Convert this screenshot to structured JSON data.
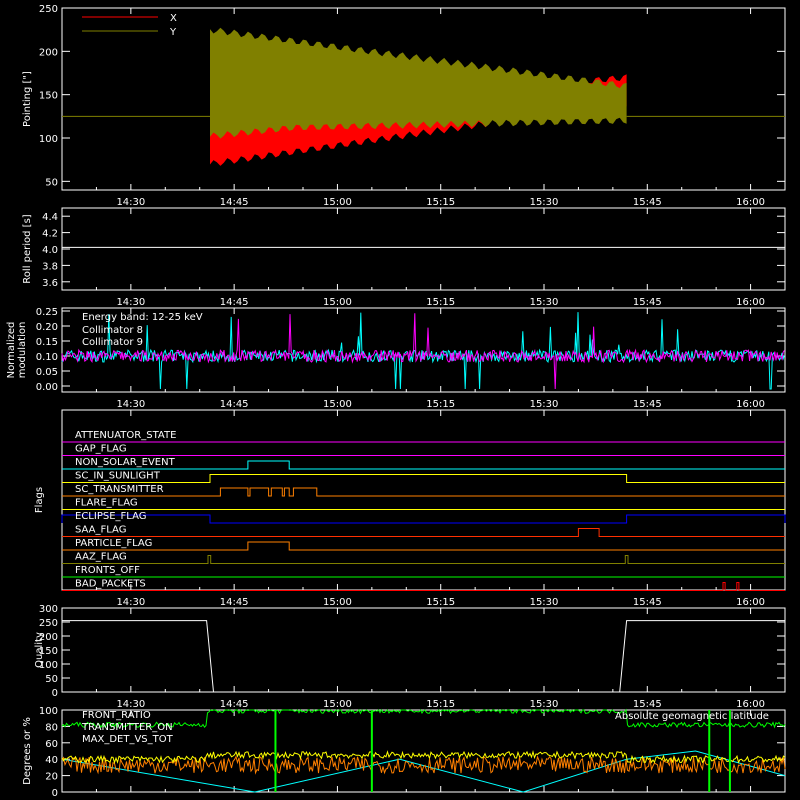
{
  "x_ticks": [
    "14:30",
    "14:45",
    "15:00",
    "15:15",
    "15:30",
    "15:45",
    "16:00"
  ],
  "panels": {
    "pointing": {
      "ylabel": "Pointing [\"]",
      "yticks": [
        "250",
        "200",
        "150",
        "100",
        "50"
      ],
      "ylim": [
        40,
        250
      ],
      "legend": [
        {
          "name": "X",
          "color": "#ff0000"
        },
        {
          "name": "Y",
          "color": "#808000"
        }
      ]
    },
    "roll": {
      "ylabel": "Roll period [s]",
      "yticks": [
        "4.4",
        "4.2",
        "4.0",
        "3.8",
        "3.6"
      ],
      "ylim": [
        3.5,
        4.5
      ],
      "value": 4.02
    },
    "modulation": {
      "ylabel_lines": [
        "Normalized",
        "modulation"
      ],
      "yticks": [
        "0.25",
        "0.20",
        "0.15",
        "0.10",
        "0.05",
        "0.00"
      ],
      "ylim": [
        -0.02,
        0.26
      ],
      "annotation": "Energy band: 12-25 keV",
      "legend": [
        {
          "name": "Collimator 8",
          "color": "#00ffff"
        },
        {
          "name": "Collimator 9",
          "color": "#ff00ff"
        }
      ]
    },
    "flags": {
      "ylabel": "Flags",
      "rows": [
        {
          "name": "ATTENUATOR_STATE",
          "color": "#ff00ff"
        },
        {
          "name": "GAP_FLAG",
          "color": "#ff00ff"
        },
        {
          "name": "NON_SOLAR_EVENT",
          "color": "#00ffff"
        },
        {
          "name": "SC_IN_SUNLIGHT",
          "color": "#ffff00"
        },
        {
          "name": "SC_TRANSMITTER",
          "color": "#ff8000"
        },
        {
          "name": "FLARE_FLAG",
          "color": "#ffff00"
        },
        {
          "name": "ECLIPSE_FLAG",
          "color": "#0000ff"
        },
        {
          "name": "SAA_FLAG",
          "color": "#ff3000"
        },
        {
          "name": "PARTICLE_FLAG",
          "color": "#ff8000"
        },
        {
          "name": "AAZ_FLAG",
          "color": "#808000"
        },
        {
          "name": "FRONTS_OFF",
          "color": "#00ff00"
        },
        {
          "name": "BAD_PACKETS",
          "color": "#ff0000"
        }
      ]
    },
    "quality": {
      "ylabel": "Quality",
      "yticks": [
        "300",
        "250",
        "200",
        "150",
        "100",
        "50",
        "0"
      ],
      "ylim": [
        0,
        300
      ]
    },
    "geo": {
      "ylabel": "Degrees or %",
      "yticks": [
        "100",
        "80",
        "60",
        "40",
        "20",
        "0"
      ],
      "ylim": [
        0,
        100
      ],
      "legend": [
        {
          "name": "FRONT_RATIO",
          "color": "#ffff00"
        },
        {
          "name": "TRANSMITTER_ON",
          "color": "#00ff00"
        },
        {
          "name": "MAX_DET_VS_TOT",
          "color": "#ff8000"
        }
      ],
      "right_label": "Absolute geomagnetic latitude",
      "right_color": "#00ffff"
    }
  },
  "chart_data": [
    {
      "type": "line",
      "title": "",
      "xlabel": "",
      "ylabel": "Pointing [\"]",
      "x": [
        "14:20",
        "14:41",
        "14:42",
        "14:50",
        "15:00",
        "15:10",
        "15:20",
        "15:30",
        "15:42",
        "15:43",
        "16:05"
      ],
      "series": [
        {
          "name": "X",
          "values": [
            125,
            125,
            95,
            105,
            115,
            140,
            165,
            165,
            165,
            125,
            125
          ]
        },
        {
          "name": "Y",
          "values": [
            125,
            125,
            185,
            175,
            165,
            150,
            135,
            130,
            130,
            125,
            125
          ]
        }
      ],
      "ylim": [
        40,
        250
      ]
    },
    {
      "type": "line",
      "ylabel": "Roll period [s]",
      "x": [
        "14:20",
        "16:05"
      ],
      "series": [
        {
          "values": [
            4.02,
            4.02
          ]
        }
      ],
      "ylim": [
        3.5,
        4.5
      ]
    },
    {
      "type": "line",
      "ylabel": "Normalized modulation",
      "x": [
        "14:20",
        "16:05"
      ],
      "series": [
        {
          "name": "Collimator 8",
          "values": [
            0.1,
            0.1
          ]
        },
        {
          "name": "Collimator 9",
          "values": [
            0.1,
            0.1
          ]
        }
      ],
      "ylim": [
        -0.02,
        0.26
      ]
    },
    {
      "type": "line",
      "ylabel": "Quality",
      "x": [
        "14:20",
        "14:41",
        "14:42",
        "15:41",
        "15:42",
        "16:05"
      ],
      "series": [
        {
          "values": [
            255,
            255,
            0,
            0,
            255,
            255
          ]
        }
      ],
      "ylim": [
        0,
        300
      ]
    },
    {
      "type": "line",
      "ylabel": "Degrees or %",
      "x": [
        "14:20",
        "14:27",
        "14:48",
        "15:09",
        "15:27",
        "15:42",
        "15:52",
        "16:05"
      ],
      "series": [
        {
          "name": "FRONT_RATIO",
          "values": [
            40,
            40,
            45,
            45,
            40,
            40,
            45,
            40
          ]
        },
        {
          "name": "TRANSMITTER_ON",
          "values": [
            80,
            80,
            100,
            100,
            100,
            80,
            80,
            80
          ]
        },
        {
          "name": "MAX_DET_VS_TOT",
          "values": [
            35,
            35,
            35,
            30,
            35,
            35,
            35,
            35
          ]
        },
        {
          "name": "Absolute geomagnetic latitude",
          "values": [
            40,
            30,
            0,
            40,
            0,
            40,
            50,
            20
          ]
        }
      ],
      "ylim": [
        0,
        100
      ]
    }
  ]
}
